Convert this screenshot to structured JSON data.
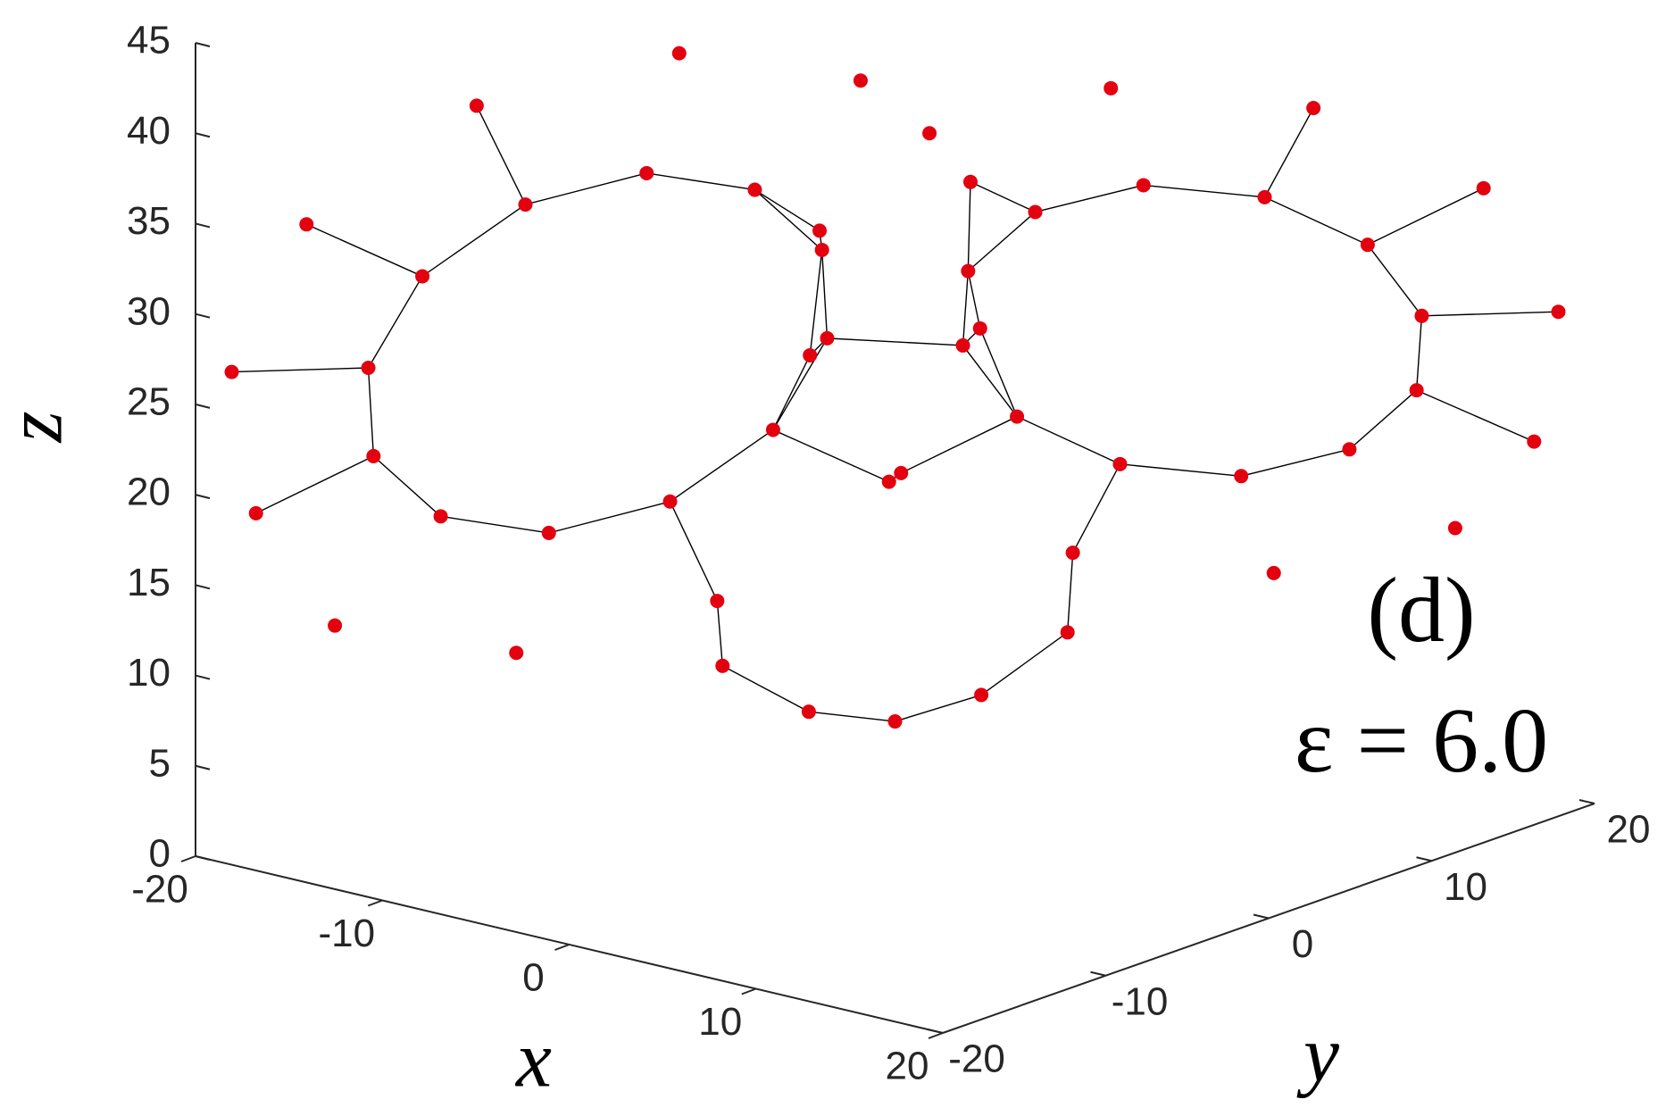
{
  "chart_data": {
    "type": "scatter3d",
    "x": [
      14.5,
      13.7,
      11.5,
      8.5,
      5.5,
      3.3,
      2.5,
      3.3,
      5.5,
      8.5,
      11.5,
      13.7,
      18.5,
      17.2,
      13.5,
      8.5,
      3.5,
      -0.2,
      -1.5,
      -0.2,
      3.5,
      8.5,
      13.5,
      17.2,
      -14.5,
      -13.7,
      -11.5,
      -8.5,
      -5.5,
      -3.3,
      -2.5,
      -3.3,
      -5.5,
      -8.5,
      -11.5,
      -13.7,
      -18.5,
      -17.2,
      -13.5,
      -8.5,
      -3.5,
      0.2,
      1.5,
      0.2,
      -3.5,
      -8.5,
      -13.5,
      -17.2,
      0,
      2,
      -2,
      4,
      -4
    ],
    "y": [
      15.7,
      13.3,
      9.5,
      5.5,
      2.3,
      0.7,
      1.3,
      3.7,
      7.5,
      11.5,
      14.7,
      16.3,
      19.5,
      16.4,
      10.2,
      3.5,
      -1.9,
      -4.4,
      -3.5,
      0.6,
      6.9,
      13.5,
      18.9,
      19.5,
      -15.7,
      -13.3,
      -9.5,
      -5.5,
      -2.3,
      -0.7,
      -1.3,
      -3.7,
      -7.5,
      -11.5,
      -14.7,
      -16.3,
      -19.5,
      -16.4,
      -10.2,
      -3.5,
      1.9,
      4.4,
      3.5,
      -0.6,
      -6.9,
      -13.5,
      -18.9,
      -19.5,
      0,
      3,
      -3,
      6,
      -6
    ],
    "z": [
      27,
      31.5,
      34.8,
      36,
      34.8,
      31.5,
      27,
      22.5,
      19.2,
      18,
      19.2,
      22.5,
      27,
      34.5,
      40,
      42,
      40,
      34.5,
      27,
      19.5,
      14,
      12,
      14,
      19.5,
      27,
      31.5,
      34.8,
      36,
      34.8,
      31.5,
      27,
      22.5,
      19.2,
      18,
      19.2,
      22.5,
      27,
      34.5,
      40,
      42,
      40,
      34.5,
      27,
      19.5,
      14,
      12,
      14,
      19.5,
      6,
      7,
      7,
      10,
      10
    ],
    "color": "#e3000f",
    "edge_color": "#000000",
    "xlim": [
      -20,
      20
    ],
    "ylim": [
      -20,
      20
    ],
    "zlim": [
      0,
      45
    ],
    "xticks": [
      -20,
      -10,
      0,
      10,
      20
    ],
    "yticks": [
      -20,
      -10,
      0,
      10,
      20
    ],
    "zticks": [
      0,
      5,
      10,
      15,
      20,
      25,
      30,
      35,
      40,
      45
    ],
    "xlabel": "x",
    "ylabel": "y",
    "zlabel": "z",
    "panel_label": "(d)",
    "epsilon": {
      "value": 6.0,
      "label": "ε = 6.0"
    }
  }
}
